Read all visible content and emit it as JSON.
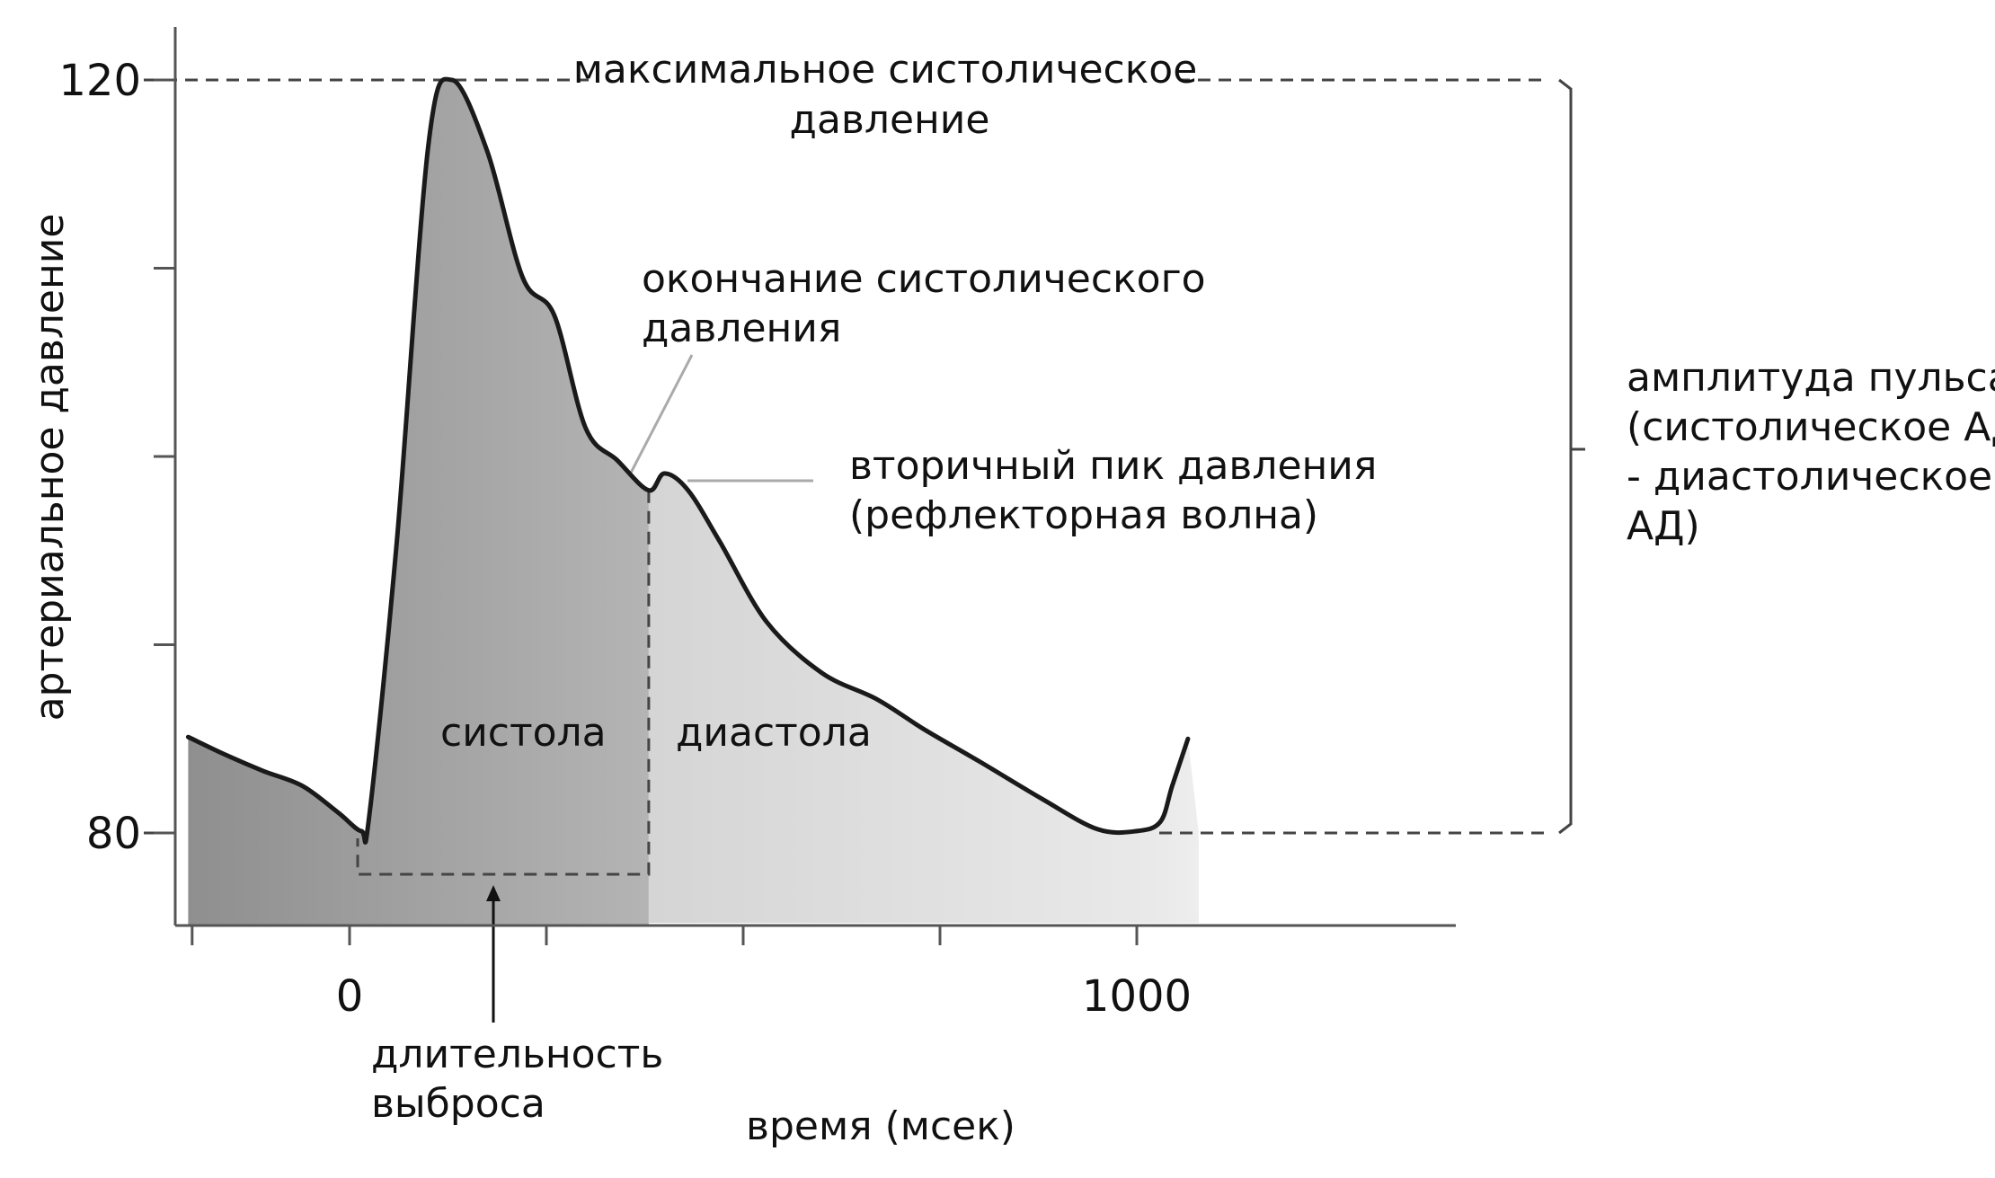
{
  "chart_data": {
    "type": "area",
    "title": "",
    "xlabel": "время (мсек)",
    "ylabel": "артериальное давление",
    "xlim": [
      -200,
      1400
    ],
    "ylim": [
      75,
      125
    ],
    "x_ticks": [
      -200,
      0,
      250,
      500,
      750,
      1000
    ],
    "x_tick_labels": [
      {
        "value": 0,
        "label": "0"
      },
      {
        "value": 1000,
        "label": "1000"
      }
    ],
    "y_ticks": [
      80,
      90,
      100,
      110,
      120
    ],
    "y_tick_labels": [
      {
        "value": 80,
        "label": "80"
      },
      {
        "value": 120,
        "label": "120"
      }
    ],
    "series": [
      {
        "x": [
          -205,
          -160,
          -110,
          -60,
          -15,
          15,
          25,
          60,
          100,
          130,
          175,
          220,
          260,
          300,
          340,
          380,
          400,
          430,
          470,
          530,
          600,
          670,
          730,
          800,
          880,
          950,
          1000,
          1030,
          1045,
          1065
        ],
        "y": [
          85.1,
          84.2,
          83.3,
          82.5,
          81.1,
          80.1,
          80.9,
          95.5,
          116.5,
          120,
          116.2,
          109.5,
          107.5,
          101.5,
          99.8,
          98.2,
          99.1,
          98.2,
          95.5,
          91.2,
          88.5,
          87.1,
          85.5,
          83.8,
          81.8,
          80.2,
          80.1,
          80.6,
          82.5,
          85
        ]
      }
    ],
    "reference_lines": [
      {
        "label": "максимальное систолическое давление",
        "y": 120
      },
      {
        "label": "",
        "y": 80
      }
    ],
    "annotations": {
      "max_systolic": [
        "максимальное систолическое",
        "давление"
      ],
      "end_systolic": [
        "окончание систолического",
        "давления"
      ],
      "secondary_peak": [
        "вторичный пик давления",
        "(рефлекторная волна)"
      ],
      "pulse_amplitude": [
        "амплитуда пульса",
        "(систолическое АД",
        "- диастолическое",
        "АД)"
      ],
      "systole": "систола",
      "diastole": "диастола",
      "ejection_duration": [
        "длительность",
        "выброса"
      ]
    },
    "grid": false,
    "legend": "none"
  },
  "colors": {
    "curve": "#1a1a1a",
    "systole_fill": "#9c9c9c",
    "diastole_fill": "#dedede",
    "axis": "#555555",
    "guide": "#444444",
    "pointer": "#aaaaaa"
  }
}
